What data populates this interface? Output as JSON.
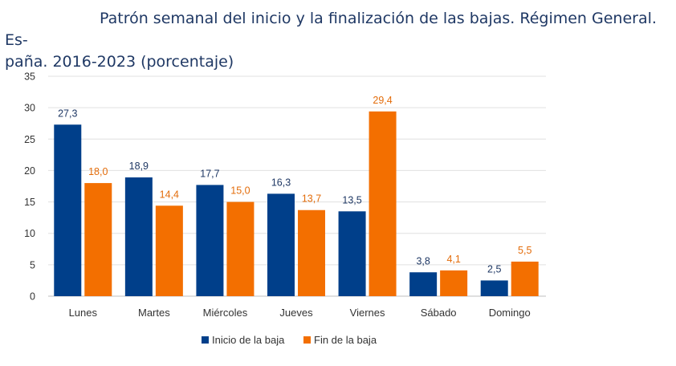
{
  "chart_data": {
    "type": "bar",
    "title_line1": "Patrón semanal del inicio y la finalización de las bajas. Régimen General. Es-",
    "title_line2": "paña. 2016-2023 (porcentaje)",
    "categories": [
      "Lunes",
      "Martes",
      "Miércoles",
      "Jueves",
      "Viernes",
      "Sábado",
      "Domingo"
    ],
    "series": [
      {
        "name": "Inicio de la baja",
        "color": "#003f8a",
        "values": [
          27.3,
          18.9,
          17.7,
          16.3,
          13.5,
          3.8,
          2.5
        ],
        "labels": [
          "27,3",
          "18,9",
          "17,7",
          "16,3",
          "13,5",
          "3,8",
          "2,5"
        ]
      },
      {
        "name": "Fin de la baja",
        "color": "#f36f00",
        "values": [
          18.0,
          14.4,
          15.0,
          13.7,
          29.4,
          4.1,
          5.5
        ],
        "labels": [
          "18,0",
          "14,4",
          "15,0",
          "13,7",
          "29,4",
          "4,1",
          "5,5"
        ]
      }
    ],
    "ylim": [
      0,
      35
    ],
    "yticks": [
      0,
      5,
      10,
      15,
      20,
      25,
      30,
      35
    ],
    "grid": true,
    "legend": "bottom-center"
  }
}
